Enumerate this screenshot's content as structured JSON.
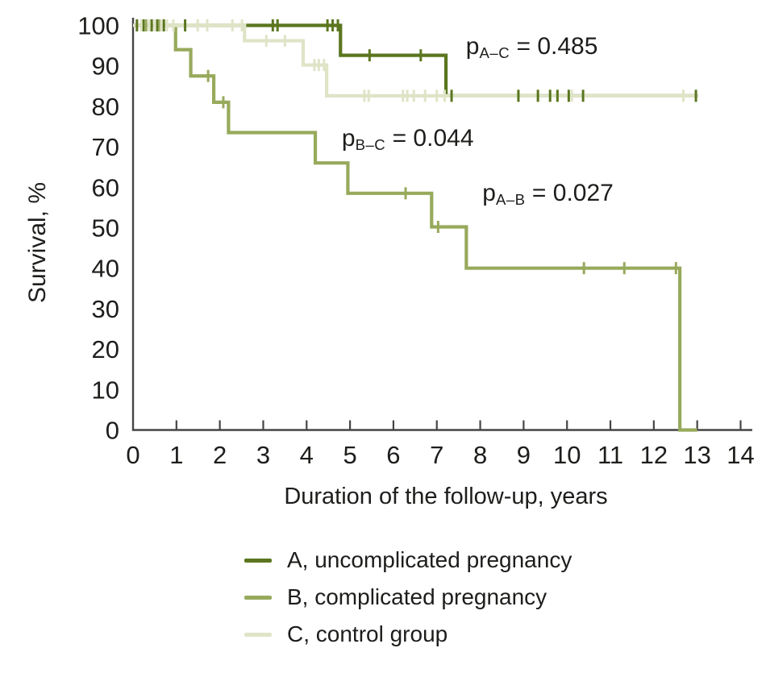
{
  "chart_data": {
    "type": "line",
    "subtype": "kaplan_meier_step_survival",
    "title": "",
    "xlabel": "Duration of the follow-up, years",
    "ylabel": "Survival, %",
    "xlim": [
      0,
      14
    ],
    "ylim": [
      0,
      100
    ],
    "xticks": [
      0,
      1,
      2,
      3,
      4,
      5,
      6,
      7,
      8,
      9,
      10,
      11,
      12,
      13,
      14
    ],
    "yticks": [
      0,
      10,
      20,
      30,
      40,
      50,
      60,
      70,
      80,
      90,
      100
    ],
    "grid": false,
    "legend_position": "bottom",
    "axis_color": "#454545",
    "text_color": "#1d1d1b",
    "series": [
      {
        "id": "A",
        "name": "A, uncomplicated pregnancy",
        "color": "#5b761f",
        "steps": [
          [
            0,
            100
          ],
          [
            4.78,
            100
          ],
          [
            4.78,
            92.6
          ],
          [
            7.21,
            92.6
          ],
          [
            7.21,
            82.6
          ],
          [
            13.02,
            82.6
          ]
        ],
        "censors": [
          [
            0.09,
            100
          ],
          [
            0.24,
            100
          ],
          [
            0.43,
            100
          ],
          [
            0.56,
            100
          ],
          [
            0.71,
            100
          ],
          [
            1.2,
            100
          ],
          [
            3.22,
            100
          ],
          [
            3.33,
            100
          ],
          [
            4.48,
            100
          ],
          [
            4.6,
            100
          ],
          [
            4.72,
            100
          ],
          [
            5.45,
            92.6
          ],
          [
            6.63,
            92.6
          ],
          [
            7.34,
            82.6
          ],
          [
            8.88,
            82.6
          ],
          [
            9.33,
            82.6
          ],
          [
            9.61,
            82.6
          ],
          [
            9.78,
            82.6
          ],
          [
            10.04,
            82.6
          ],
          [
            10.37,
            82.6
          ],
          [
            12.97,
            82.6
          ]
        ]
      },
      {
        "id": "B",
        "name": "B, complicated pregnancy",
        "color": "#97aa5c",
        "steps": [
          [
            0,
            100
          ],
          [
            0.98,
            100
          ],
          [
            0.98,
            94
          ],
          [
            1.33,
            94
          ],
          [
            1.33,
            87.5
          ],
          [
            1.86,
            87.5
          ],
          [
            1.86,
            81
          ],
          [
            2.2,
            81
          ],
          [
            2.2,
            73.5
          ],
          [
            4.2,
            73.5
          ],
          [
            4.2,
            66
          ],
          [
            4.95,
            66
          ],
          [
            4.95,
            58.5
          ],
          [
            6.88,
            58.5
          ],
          [
            6.88,
            50.2
          ],
          [
            7.68,
            50.2
          ],
          [
            7.68,
            40
          ],
          [
            12.6,
            40
          ],
          [
            12.6,
            0
          ],
          [
            13.0,
            0
          ]
        ],
        "censors": [
          [
            0.3,
            100
          ],
          [
            0.62,
            100
          ],
          [
            1.73,
            87.5
          ],
          [
            2.08,
            81
          ],
          [
            6.28,
            58.5
          ],
          [
            7.03,
            50.2
          ],
          [
            10.39,
            40
          ],
          [
            11.32,
            40
          ],
          [
            12.51,
            40
          ]
        ]
      },
      {
        "id": "C",
        "name": "C, control group",
        "color": "#dfe4c7",
        "steps": [
          [
            0,
            100
          ],
          [
            2.57,
            100
          ],
          [
            2.57,
            96.2
          ],
          [
            3.92,
            96.2
          ],
          [
            3.92,
            90.2
          ],
          [
            4.46,
            90.2
          ],
          [
            4.46,
            82.6
          ],
          [
            13.02,
            82.6
          ]
        ],
        "censors": [
          [
            0.19,
            100
          ],
          [
            0.37,
            100
          ],
          [
            0.5,
            100
          ],
          [
            0.65,
            100
          ],
          [
            0.78,
            100
          ],
          [
            0.93,
            100
          ],
          [
            1.49,
            100
          ],
          [
            1.71,
            100
          ],
          [
            2.29,
            100
          ],
          [
            2.51,
            100
          ],
          [
            3.07,
            96.2
          ],
          [
            3.5,
            96.2
          ],
          [
            4.18,
            90.2
          ],
          [
            4.28,
            90.2
          ],
          [
            4.4,
            90.2
          ],
          [
            5.33,
            82.6
          ],
          [
            5.43,
            82.6
          ],
          [
            6.22,
            82.6
          ],
          [
            6.32,
            82.6
          ],
          [
            6.47,
            82.6
          ],
          [
            6.73,
            82.6
          ],
          [
            7.0,
            82.6
          ],
          [
            7.18,
            82.6
          ],
          [
            10.11,
            82.6
          ],
          [
            12.68,
            82.6
          ]
        ]
      }
    ],
    "annotations": [
      {
        "id": "p_ac",
        "prefix": "p",
        "sub": "A–C",
        "rest": " = 0.485",
        "x": 7.67,
        "y": 94.7
      },
      {
        "id": "p_bc",
        "prefix": "p",
        "sub": "B–C",
        "rest": " = 0.044",
        "x": 4.81,
        "y": 72.0
      },
      {
        "id": "p_ab",
        "prefix": "p",
        "sub": "A–B",
        "rest": " = 0.027",
        "x": 8.05,
        "y": 58.5
      }
    ]
  }
}
